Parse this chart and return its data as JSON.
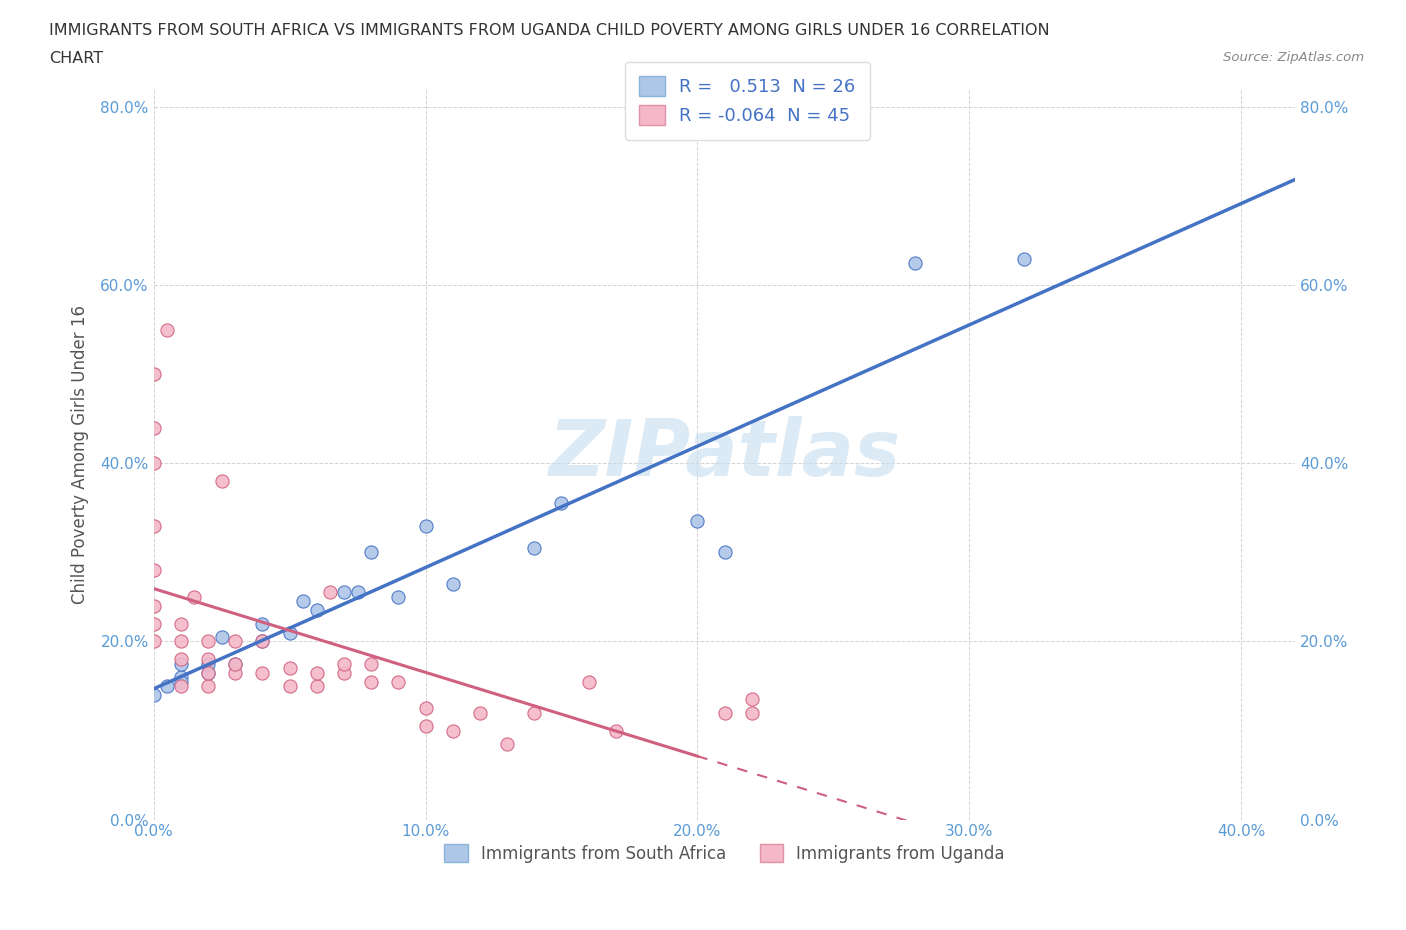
{
  "title_line1": "IMMIGRANTS FROM SOUTH AFRICA VS IMMIGRANTS FROM UGANDA CHILD POVERTY AMONG GIRLS UNDER 16 CORRELATION",
  "title_line2": "CHART",
  "source": "Source: ZipAtlas.com",
  "ylabel": "Child Poverty Among Girls Under 16",
  "xlim": [
    0.0,
    0.42
  ],
  "ylim": [
    0.0,
    0.82
  ],
  "xtick_labels": [
    "0.0%",
    "10.0%",
    "20.0%",
    "30.0%",
    "40.0%"
  ],
  "xtick_vals": [
    0.0,
    0.1,
    0.2,
    0.3,
    0.4
  ],
  "ytick_labels": [
    "0.0%",
    "20.0%",
    "40.0%",
    "60.0%",
    "80.0%"
  ],
  "ytick_vals": [
    0.0,
    0.2,
    0.4,
    0.6,
    0.8
  ],
  "r_sa": 0.513,
  "n_sa": 26,
  "r_ug": -0.064,
  "n_ug": 45,
  "color_sa": "#aec6e8",
  "color_ug": "#f4b8c8",
  "line_color_sa": "#4472c4",
  "line_color_ug": "#d06080",
  "watermark": "ZIPatlas",
  "bg": "#ffffff",
  "scatter_sa_x": [
    0.0,
    0.005,
    0.01,
    0.01,
    0.01,
    0.02,
    0.02,
    0.025,
    0.03,
    0.04,
    0.04,
    0.05,
    0.055,
    0.06,
    0.07,
    0.075,
    0.08,
    0.09,
    0.1,
    0.11,
    0.14,
    0.15,
    0.2,
    0.21,
    0.28,
    0.32
  ],
  "scatter_sa_y": [
    0.14,
    0.15,
    0.16,
    0.155,
    0.175,
    0.165,
    0.175,
    0.205,
    0.175,
    0.2,
    0.22,
    0.21,
    0.245,
    0.235,
    0.255,
    0.255,
    0.3,
    0.25,
    0.33,
    0.265,
    0.305,
    0.355,
    0.335,
    0.3,
    0.625,
    0.63
  ],
  "scatter_ug_x": [
    0.0,
    0.0,
    0.0,
    0.0,
    0.0,
    0.0,
    0.0,
    0.0,
    0.005,
    0.01,
    0.01,
    0.01,
    0.01,
    0.015,
    0.02,
    0.02,
    0.02,
    0.02,
    0.025,
    0.03,
    0.03,
    0.03,
    0.04,
    0.04,
    0.05,
    0.05,
    0.06,
    0.06,
    0.065,
    0.07,
    0.07,
    0.08,
    0.08,
    0.09,
    0.1,
    0.1,
    0.11,
    0.12,
    0.13,
    0.14,
    0.16,
    0.17,
    0.21,
    0.22,
    0.22
  ],
  "scatter_ug_y": [
    0.2,
    0.22,
    0.24,
    0.28,
    0.33,
    0.4,
    0.44,
    0.5,
    0.55,
    0.15,
    0.18,
    0.2,
    0.22,
    0.25,
    0.15,
    0.165,
    0.18,
    0.2,
    0.38,
    0.165,
    0.175,
    0.2,
    0.165,
    0.2,
    0.15,
    0.17,
    0.15,
    0.165,
    0.255,
    0.165,
    0.175,
    0.155,
    0.175,
    0.155,
    0.105,
    0.125,
    0.1,
    0.12,
    0.085,
    0.12,
    0.155,
    0.1,
    0.12,
    0.12,
    0.135
  ]
}
